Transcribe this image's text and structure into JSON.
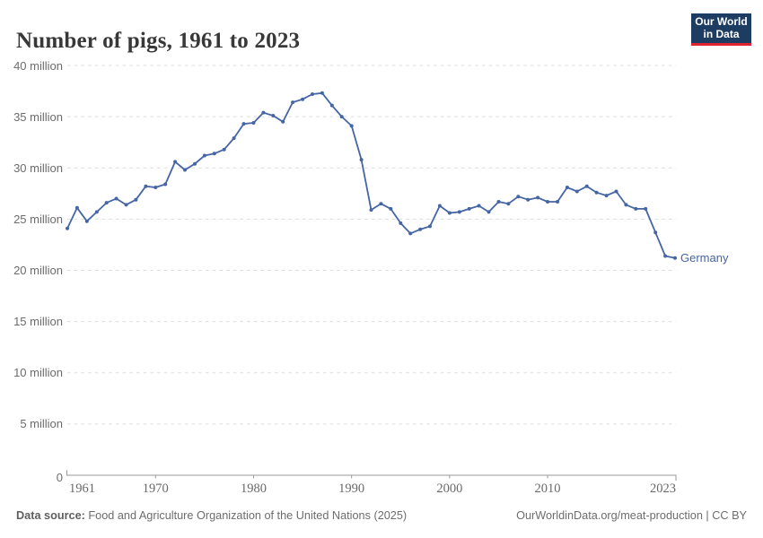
{
  "header": {
    "title": "Number of pigs, 1961 to 2023",
    "logo": {
      "line1": "Our World",
      "line2": "in Data"
    }
  },
  "chart_data": {
    "type": "line",
    "title": "Number of pigs, 1961 to 2023",
    "entity": "Germany",
    "unit": "million pigs",
    "grid": "dashed-horizontal",
    "legend_position": "line-end-label",
    "ylim_million": [
      0,
      40
    ],
    "yticks_million": [
      0,
      5,
      10,
      15,
      20,
      25,
      30,
      35,
      40
    ],
    "ytick_suffix": " million",
    "xticks": [
      1961,
      1970,
      1980,
      1990,
      2000,
      2010,
      2023
    ],
    "x": [
      1961,
      1962,
      1963,
      1964,
      1965,
      1966,
      1967,
      1968,
      1969,
      1970,
      1971,
      1972,
      1973,
      1974,
      1975,
      1976,
      1977,
      1978,
      1979,
      1980,
      1981,
      1982,
      1983,
      1984,
      1985,
      1986,
      1987,
      1988,
      1989,
      1990,
      1991,
      1992,
      1993,
      1994,
      1995,
      1996,
      1997,
      1998,
      1999,
      2000,
      2001,
      2002,
      2003,
      2004,
      2005,
      2006,
      2007,
      2008,
      2009,
      2010,
      2011,
      2012,
      2013,
      2014,
      2015,
      2016,
      2017,
      2018,
      2019,
      2020,
      2021,
      2022,
      2023
    ],
    "series": [
      {
        "name": "Germany",
        "color": "#4565a5",
        "values_million": [
          24.1,
          26.1,
          24.8,
          25.7,
          26.6,
          27.0,
          26.4,
          26.9,
          28.2,
          28.1,
          28.4,
          30.6,
          29.8,
          30.4,
          31.2,
          31.4,
          31.8,
          32.9,
          34.3,
          34.4,
          35.4,
          35.1,
          34.5,
          36.4,
          36.7,
          37.2,
          37.3,
          36.1,
          35.0,
          34.1,
          30.8,
          25.9,
          26.5,
          26.0,
          24.6,
          23.6,
          24.0,
          24.3,
          26.3,
          25.6,
          25.7,
          26.0,
          26.3,
          25.7,
          26.7,
          26.5,
          27.2,
          26.9,
          27.1,
          26.7,
          26.7,
          28.1,
          27.7,
          28.2,
          27.6,
          27.3,
          27.7,
          26.4,
          26.0,
          26.0,
          23.7,
          21.4,
          21.2
        ]
      }
    ]
  },
  "footer": {
    "source_label": "Data source:",
    "source_text": " Food and Agriculture Organization of the United Nations (2025)",
    "attribution": "OurWorldinData.org/meat-production | CC BY"
  },
  "colors": {
    "line": "#4565a5",
    "grid": "#dcdcdc",
    "axis": "#999999",
    "tick_text": "#6b6b6b",
    "title_text": "#383838",
    "footer_text": "#6d6d6d",
    "logo_bg": "#1d3c61",
    "logo_red": "#e0232e"
  }
}
